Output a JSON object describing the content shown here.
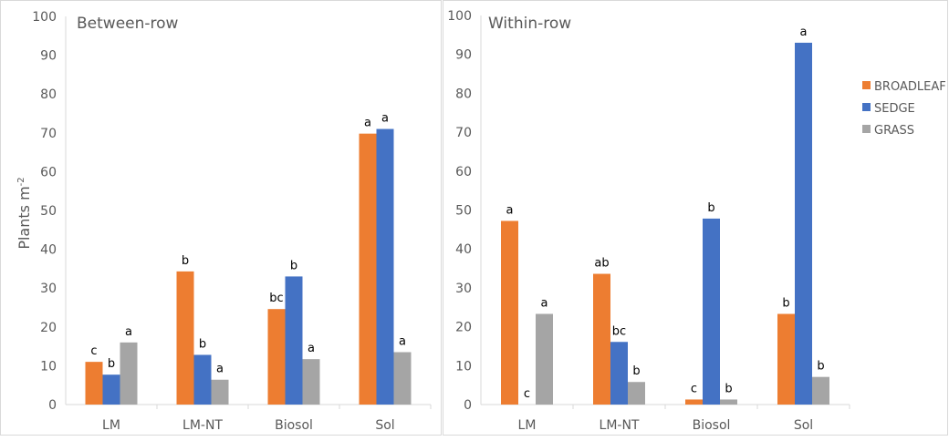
{
  "chart_data": [
    {
      "type": "bar",
      "title": "Between-row",
      "ylabel": "Plants m",
      "ylabel_superscript": "-2",
      "ylim": [
        0,
        100
      ],
      "yticks": [
        "0",
        "10",
        "20",
        "30",
        "40",
        "50",
        "60",
        "70",
        "80",
        "90",
        "100"
      ],
      "categories": [
        "LM",
        "LM-NT",
        "Biosol",
        "Sol"
      ],
      "series": [
        {
          "name": "BROADLEAF",
          "color": "#ED7D31",
          "values": [
            11,
            34.3,
            24.6,
            69.8
          ],
          "letters": [
            "c",
            "b",
            "bc",
            "a"
          ]
        },
        {
          "name": "SEDGE",
          "color": "#4472C4",
          "values": [
            7.7,
            12.8,
            33,
            71
          ],
          "letters": [
            "b",
            "b",
            "b",
            "a"
          ]
        },
        {
          "name": "GRASS",
          "color": "#A5A5A5",
          "values": [
            16,
            6.4,
            11.7,
            13.5
          ],
          "letters": [
            "a",
            "a",
            "a",
            "a"
          ]
        }
      ]
    },
    {
      "type": "bar",
      "title": "Within-row",
      "ylim": [
        0,
        100
      ],
      "yticks": [
        "0",
        "10",
        "20",
        "30",
        "40",
        "50",
        "60",
        "70",
        "80",
        "90",
        "100"
      ],
      "categories": [
        "LM",
        "LM-NT",
        "Biosol",
        "Sol"
      ],
      "legend": "right",
      "series": [
        {
          "name": "BROADLEAF",
          "color": "#ED7D31",
          "values": [
            47.2,
            33.6,
            1.3,
            23.3
          ],
          "letters": [
            "a",
            "ab",
            "c",
            "b"
          ]
        },
        {
          "name": "SEDGE",
          "color": "#4472C4",
          "values": [
            0,
            16.1,
            47.8,
            93
          ],
          "letters": [
            "c",
            "bc",
            "b",
            "a"
          ]
        },
        {
          "name": "GRASS",
          "color": "#A5A5A5",
          "values": [
            23.3,
            5.8,
            1.3,
            7.1
          ],
          "letters": [
            "a",
            "b",
            "b",
            "b"
          ]
        }
      ]
    }
  ]
}
